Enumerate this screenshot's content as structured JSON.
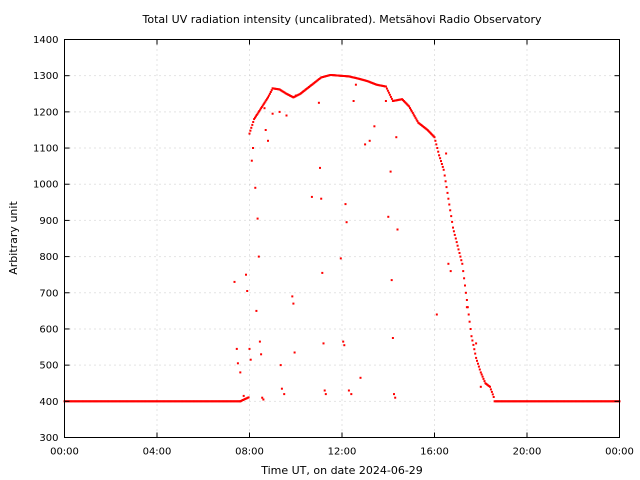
{
  "chart_data": {
    "type": "scatter",
    "title": "Total UV radiation intensity (uncalibrated). Metsähovi Radio Observatory",
    "xlabel": "Time UT, on date 2024-06-29",
    "ylabel": "Arbitrary unit",
    "xlim": [
      0,
      24
    ],
    "ylim": [
      300,
      1400
    ],
    "x_ticks": [
      0,
      4,
      8,
      12,
      16,
      20,
      24
    ],
    "x_tick_labels": [
      "00:00",
      "04:00",
      "08:00",
      "12:00",
      "16:00",
      "20:00",
      "00:00"
    ],
    "y_ticks": [
      300,
      400,
      500,
      600,
      700,
      800,
      900,
      1000,
      1100,
      1200,
      1300,
      1400
    ],
    "grid": true,
    "series": [
      {
        "color": "#ff0000",
        "baseline": {
          "value": 400,
          "x_ranges": [
            [
              0,
              7.6
            ],
            [
              18.6,
              24
            ]
          ]
        },
        "curve": [
          [
            8.0,
            1140
          ],
          [
            8.2,
            1180
          ],
          [
            8.5,
            1210
          ],
          [
            8.8,
            1240
          ],
          [
            9.0,
            1265
          ],
          [
            9.3,
            1262
          ],
          [
            9.6,
            1250
          ],
          [
            9.9,
            1240
          ],
          [
            10.2,
            1250
          ],
          [
            10.5,
            1265
          ],
          [
            10.8,
            1280
          ],
          [
            11.1,
            1295
          ],
          [
            11.5,
            1302
          ],
          [
            11.9,
            1300
          ],
          [
            12.3,
            1298
          ],
          [
            12.7,
            1292
          ],
          [
            13.1,
            1285
          ],
          [
            13.5,
            1275
          ],
          [
            13.9,
            1270
          ],
          [
            14.2,
            1230
          ],
          [
            14.6,
            1235
          ],
          [
            14.9,
            1215
          ],
          [
            15.3,
            1170
          ],
          [
            15.7,
            1150
          ],
          [
            16.0,
            1130
          ],
          [
            16.2,
            1080
          ],
          [
            16.4,
            1040
          ],
          [
            16.6,
            960
          ],
          [
            16.8,
            880
          ],
          [
            17.0,
            830
          ],
          [
            17.2,
            780
          ],
          [
            17.4,
            680
          ],
          [
            17.6,
            580
          ],
          [
            17.8,
            520
          ],
          [
            18.0,
            480
          ],
          [
            18.2,
            450
          ],
          [
            18.4,
            440
          ],
          [
            18.6,
            405
          ]
        ],
        "scatter_points": [
          [
            7.35,
            730
          ],
          [
            7.45,
            545
          ],
          [
            7.5,
            505
          ],
          [
            7.6,
            480
          ],
          [
            7.75,
            415
          ],
          [
            7.85,
            750
          ],
          [
            7.9,
            705
          ],
          [
            8.0,
            545
          ],
          [
            8.05,
            515
          ],
          [
            8.1,
            1065
          ],
          [
            8.15,
            1100
          ],
          [
            8.25,
            990
          ],
          [
            8.3,
            650
          ],
          [
            8.35,
            905
          ],
          [
            8.4,
            800
          ],
          [
            8.45,
            565
          ],
          [
            8.5,
            530
          ],
          [
            8.55,
            410
          ],
          [
            8.6,
            405
          ],
          [
            8.65,
            1210
          ],
          [
            8.7,
            1150
          ],
          [
            8.8,
            1120
          ],
          [
            9.0,
            1195
          ],
          [
            9.3,
            1200
          ],
          [
            9.35,
            500
          ],
          [
            9.4,
            435
          ],
          [
            9.5,
            420
          ],
          [
            9.6,
            1190
          ],
          [
            9.85,
            690
          ],
          [
            9.9,
            670
          ],
          [
            9.95,
            535
          ],
          [
            10.0,
            1245
          ],
          [
            10.7,
            965
          ],
          [
            11.0,
            1225
          ],
          [
            11.05,
            1045
          ],
          [
            11.1,
            960
          ],
          [
            11.15,
            755
          ],
          [
            11.2,
            560
          ],
          [
            11.25,
            430
          ],
          [
            11.3,
            420
          ],
          [
            11.95,
            795
          ],
          [
            12.05,
            565
          ],
          [
            12.1,
            555
          ],
          [
            12.15,
            945
          ],
          [
            12.2,
            895
          ],
          [
            12.3,
            430
          ],
          [
            12.4,
            420
          ],
          [
            12.5,
            1230
          ],
          [
            12.6,
            1275
          ],
          [
            12.8,
            465
          ],
          [
            13.0,
            1110
          ],
          [
            13.2,
            1120
          ],
          [
            13.4,
            1160
          ],
          [
            13.9,
            1230
          ],
          [
            14.0,
            910
          ],
          [
            14.1,
            1035
          ],
          [
            14.15,
            735
          ],
          [
            14.2,
            575
          ],
          [
            14.25,
            420
          ],
          [
            14.3,
            410
          ],
          [
            14.35,
            1130
          ],
          [
            14.4,
            875
          ],
          [
            16.1,
            640
          ],
          [
            16.5,
            1085
          ],
          [
            16.6,
            780
          ],
          [
            16.7,
            760
          ],
          [
            17.4,
            660
          ],
          [
            17.8,
            560
          ],
          [
            18.0,
            440
          ]
        ]
      }
    ]
  }
}
